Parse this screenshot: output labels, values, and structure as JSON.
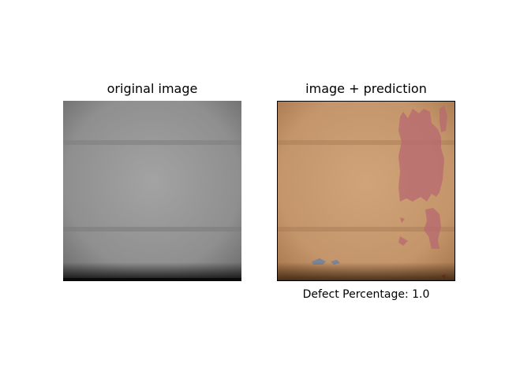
{
  "figure": {
    "left_title": "original image",
    "right_title": "image + prediction",
    "caption": "Defect Percentage: 1.0"
  }
}
